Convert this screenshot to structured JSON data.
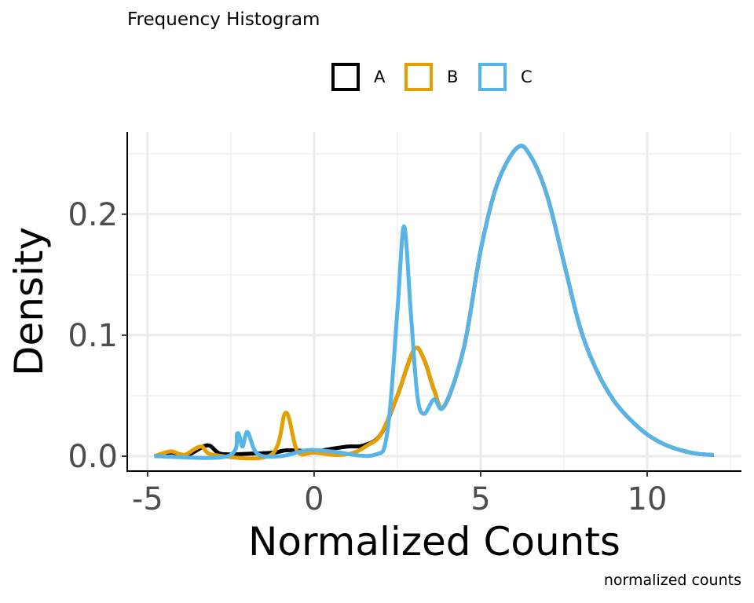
{
  "chart_data": {
    "type": "line",
    "title": "Frequency Histogram",
    "xlabel": "Normalized Counts",
    "ylabel": "Density",
    "caption": "normalized counts",
    "xlim": [
      -5.61,
      12.83
    ],
    "ylim": [
      -0.0123,
      0.268
    ],
    "xticks": [
      -5,
      0,
      5,
      10
    ],
    "xtick_labels": [
      "-5",
      "0",
      "5",
      "10"
    ],
    "yticks": [
      0,
      0.1,
      0.2
    ],
    "ytick_labels": [
      "0.0",
      "0.1",
      "0.2"
    ],
    "grid": true,
    "legend_position": "top",
    "tail": [
      [
        4,
        0.041
      ],
      [
        4.5,
        0.09
      ],
      [
        5,
        0.17
      ],
      [
        5.5,
        0.225
      ],
      [
        6.1,
        0.255
      ],
      [
        6.5,
        0.248
      ],
      [
        7,
        0.215
      ],
      [
        7.5,
        0.16
      ],
      [
        8,
        0.105
      ],
      [
        8.5,
        0.07
      ],
      [
        9,
        0.046
      ],
      [
        9.5,
        0.03
      ],
      [
        10,
        0.018
      ],
      [
        10.5,
        0.01
      ],
      [
        11,
        0.005
      ],
      [
        11.5,
        0.002
      ],
      [
        12,
        0.001
      ]
    ],
    "series": [
      {
        "name": "A",
        "color": "#000000",
        "points": [
          [
            -4.8,
            0
          ],
          [
            -4.3,
            0.003
          ],
          [
            -3.8,
            0.001
          ],
          [
            -3.2,
            0.009
          ],
          [
            -2.8,
            0.002
          ],
          [
            -2,
            0.002
          ],
          [
            -1.2,
            0.003
          ],
          [
            -0.8,
            0.005
          ],
          [
            0,
            0.004
          ],
          [
            0.5,
            0.006
          ],
          [
            1,
            0.008
          ],
          [
            1.5,
            0.009
          ],
          [
            2,
            0.018
          ],
          [
            2.5,
            0.05
          ],
          [
            3,
            0.088
          ],
          [
            3.3,
            0.08
          ],
          [
            3.6,
            0.055
          ],
          [
            3.9,
            0.041
          ]
        ]
      },
      {
        "name": "B",
        "color": "#E69F00",
        "points": [
          [
            -4.8,
            0
          ],
          [
            -4.3,
            0.004
          ],
          [
            -3.9,
            0.001
          ],
          [
            -3.4,
            0.008
          ],
          [
            -3,
            0.001
          ],
          [
            -1.3,
            0.001
          ],
          [
            -0.85,
            0.036
          ],
          [
            -0.5,
            0.004
          ],
          [
            0,
            0.003
          ],
          [
            0.7,
            0.001
          ],
          [
            1.2,
            0.003
          ],
          [
            1.6,
            0.009
          ],
          [
            2,
            0.018
          ],
          [
            2.5,
            0.05
          ],
          [
            3,
            0.088
          ],
          [
            3.3,
            0.08
          ],
          [
            3.6,
            0.055
          ],
          [
            3.9,
            0.041
          ]
        ]
      },
      {
        "name": "C",
        "color": "#56B4E9",
        "points": [
          [
            -4.8,
            0
          ],
          [
            -2.6,
            0
          ],
          [
            -2.3,
            0.019
          ],
          [
            -2.15,
            0.008
          ],
          [
            -2.0,
            0.02
          ],
          [
            -1.7,
            0.002
          ],
          [
            -1,
            0
          ],
          [
            -0.2,
            0.005
          ],
          [
            0.5,
            0.004
          ],
          [
            1.8,
            0.001
          ],
          [
            2.2,
            0.02
          ],
          [
            2.5,
            0.12
          ],
          [
            2.7,
            0.19
          ],
          [
            2.9,
            0.12
          ],
          [
            3.1,
            0.05
          ],
          [
            3.3,
            0.035
          ],
          [
            3.6,
            0.047
          ],
          [
            3.9,
            0.041
          ]
        ]
      }
    ]
  }
}
